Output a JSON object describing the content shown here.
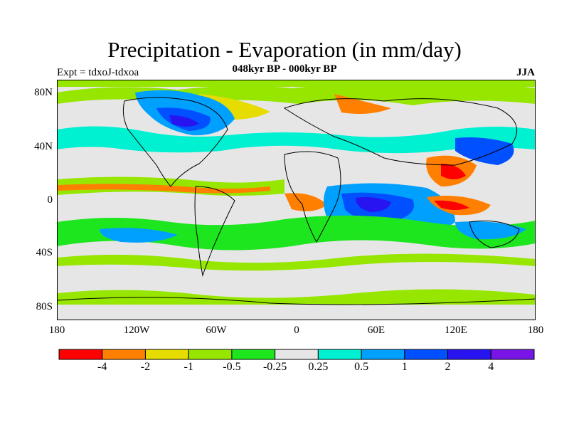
{
  "figure": {
    "title": "Precipitation - Evaporation (in mm/day)",
    "subtitle": "048kyr BP - 000kyr BP",
    "left_label": "Expt = tdxoJ-tdxoa",
    "right_label": "JJA"
  },
  "axes": {
    "lat_labels": [
      "80N",
      "40N",
      "0",
      "40S",
      "80S"
    ],
    "lon_labels": [
      "180",
      "120W",
      "60W",
      "0",
      "60E",
      "120E",
      "180"
    ]
  },
  "colorbar": {
    "colors": [
      "#ff0000",
      "#ff8000",
      "#e6dc00",
      "#96e600",
      "#1ee61e",
      "#e6e6e6",
      "#00f0d2",
      "#00a0ff",
      "#0050ff",
      "#2814f0",
      "#7814e6"
    ],
    "labels": [
      "-4",
      "-2",
      "-1",
      "-0.5",
      "-0.25",
      "0.25",
      "0.5",
      "1",
      "2",
      "4"
    ]
  },
  "map_colors": {
    "ocean_bg": "#e6e6e6",
    "coast": "#000000"
  }
}
